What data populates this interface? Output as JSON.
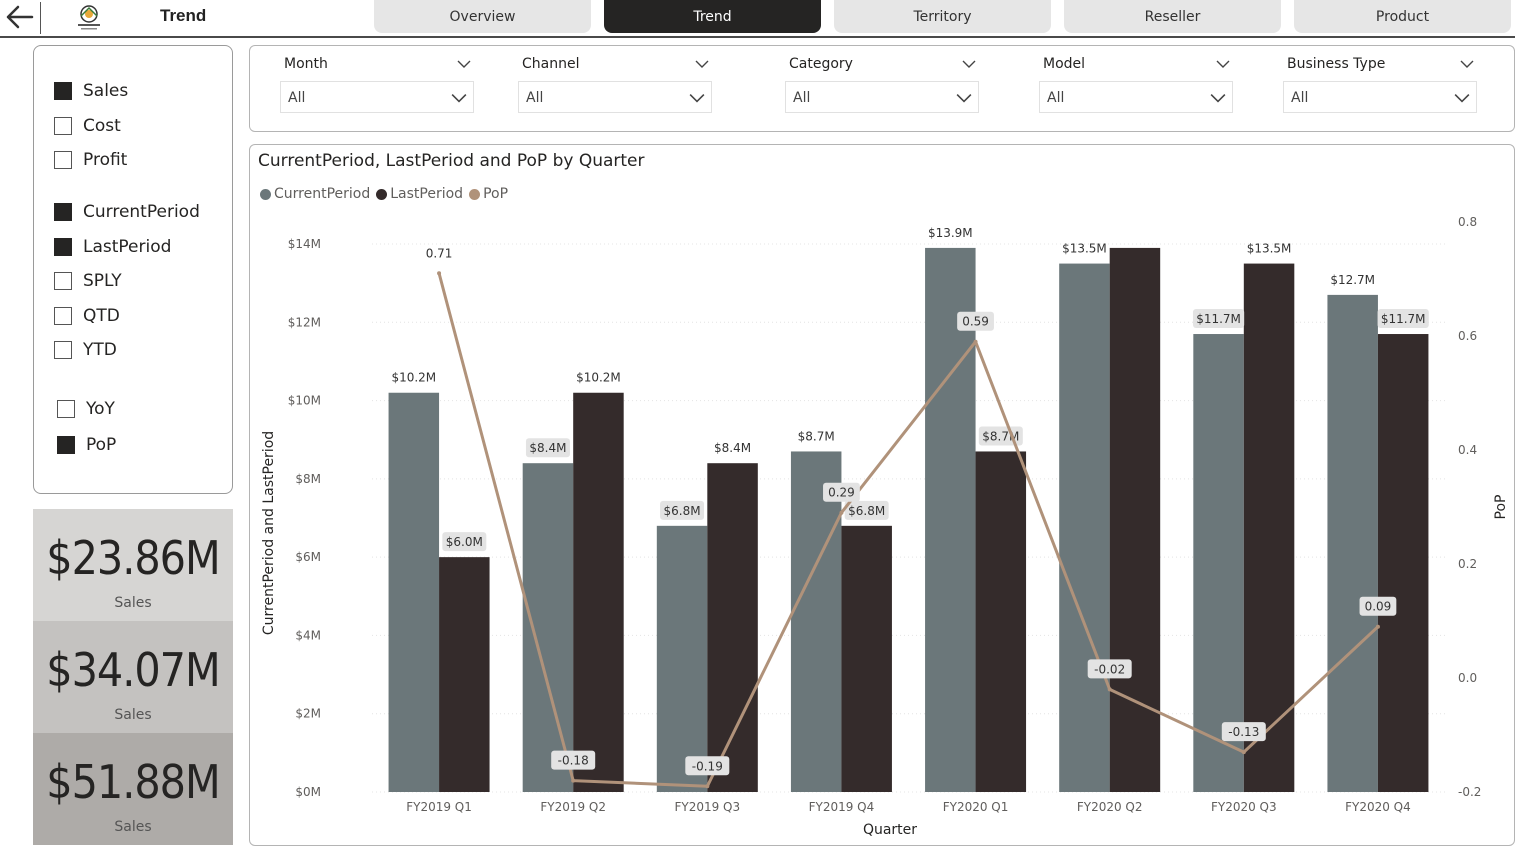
{
  "header": {
    "title": "Trend",
    "logo_text": "Adventure Works",
    "tabs": [
      {
        "label": "Overview",
        "active": false
      },
      {
        "label": "Trend",
        "active": true
      },
      {
        "label": "Territory",
        "active": false
      },
      {
        "label": "Reseller",
        "active": false
      },
      {
        "label": "Product",
        "active": false
      }
    ]
  },
  "measure_slicer": {
    "groups": [
      [
        {
          "label": "Sales",
          "checked": true
        },
        {
          "label": "Cost",
          "checked": false
        },
        {
          "label": "Profit",
          "checked": false
        }
      ],
      [
        {
          "label": "CurrentPeriod",
          "checked": true
        },
        {
          "label": "LastPeriod",
          "checked": true
        },
        {
          "label": "SPLY",
          "checked": false
        },
        {
          "label": "QTD",
          "checked": false
        },
        {
          "label": "YTD",
          "checked": false
        }
      ],
      [
        {
          "label": "YoY",
          "checked": false
        },
        {
          "label": "PoP",
          "checked": true
        }
      ]
    ]
  },
  "kpis": [
    {
      "value": "$23.86M",
      "caption": "Sales",
      "bg": "#d6d5d3"
    },
    {
      "value": "$34.07M",
      "caption": "Sales",
      "bg": "#c4c2c0"
    },
    {
      "value": "$51.88M",
      "caption": "Sales",
      "bg": "#aeaba8"
    }
  ],
  "filters": [
    {
      "title": "Month",
      "value": "All"
    },
    {
      "title": "Channel",
      "value": "All"
    },
    {
      "title": "Category",
      "value": "All"
    },
    {
      "title": "Model",
      "value": "All"
    },
    {
      "title": "Business Type",
      "value": "All"
    }
  ],
  "colors": {
    "current": "#6b777a",
    "last": "#342b2b",
    "pop": "#b0927a",
    "label_box": "#e3e3e3"
  },
  "chart_data": {
    "type": "bar",
    "title": "CurrentPeriod, LastPeriod and PoP by Quarter",
    "xlabel": "Quarter",
    "ylabel": "CurrentPeriod and LastPeriod",
    "y2label": "PoP",
    "categories": [
      "FY2019 Q1",
      "FY2019 Q2",
      "FY2019 Q3",
      "FY2019 Q4",
      "FY2020 Q1",
      "FY2020 Q2",
      "FY2020 Q3",
      "FY2020 Q4"
    ],
    "series": [
      {
        "name": "CurrentPeriod",
        "type": "bar",
        "values": [
          10.2,
          8.4,
          6.8,
          8.7,
          13.9,
          13.5,
          11.7,
          12.7
        ],
        "labels": [
          "$10.2M",
          "$8.4M",
          "$6.8M",
          "$8.7M",
          "$13.9M",
          "$13.5M",
          "$11.7M",
          "$12.7M"
        ]
      },
      {
        "name": "LastPeriod",
        "type": "bar",
        "values": [
          6.0,
          10.2,
          8.4,
          6.8,
          8.7,
          13.9,
          13.5,
          11.7
        ],
        "labels": [
          "$6.0M",
          "$10.2M",
          "$8.4M",
          "$6.8M",
          "$8.7M",
          "",
          "$13.5M",
          "$11.7M"
        ]
      },
      {
        "name": "PoP",
        "type": "line",
        "axis": "secondary",
        "values": [
          0.71,
          -0.18,
          -0.19,
          0.29,
          0.59,
          -0.02,
          -0.13,
          0.09
        ],
        "labels": [
          "0.71",
          "-0.18",
          "-0.19",
          "0.29",
          "0.59",
          "-0.02",
          "-0.13",
          "0.09"
        ]
      }
    ],
    "ylim": [
      0,
      14
    ],
    "yticks": [
      "$0M",
      "$2M",
      "$4M",
      "$6M",
      "$8M",
      "$10M",
      "$12M",
      "$14M"
    ],
    "y2lim": [
      -0.2,
      0.8
    ],
    "y2ticks": [
      "-0.2",
      "0.0",
      "0.2",
      "0.4",
      "0.6",
      "0.8"
    ],
    "legend": "top-left",
    "grid": true
  }
}
